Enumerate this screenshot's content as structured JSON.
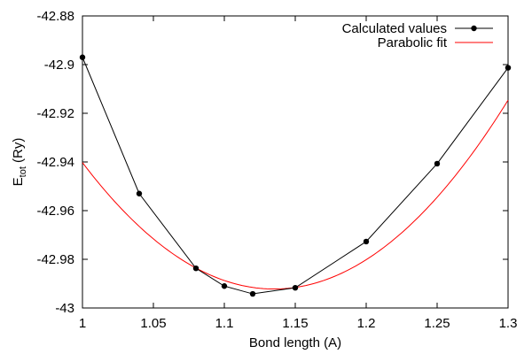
{
  "chart_data": {
    "type": "line",
    "xlabel": "Bond length (A)",
    "ylabel_main": "E",
    "ylabel_sub": "tot",
    "ylabel_suffix": " (Ry)",
    "xlim": [
      1.0,
      1.3
    ],
    "ylim": [
      -43.0,
      -42.88
    ],
    "xticks": [
      1.0,
      1.05,
      1.1,
      1.15,
      1.2,
      1.25,
      1.3
    ],
    "xtick_labels": [
      "1",
      "1.05",
      "1.1",
      "1.15",
      "1.2",
      "1.25",
      "1.3"
    ],
    "yticks": [
      -42.88,
      -42.9,
      -42.92,
      -42.94,
      -42.96,
      -42.98,
      -43.0
    ],
    "ytick_labels": [
      "-42.88",
      "-42.9",
      "-42.92",
      "-42.94",
      "-42.96",
      "-42.98",
      "-43"
    ],
    "grid": false,
    "legend_position": "top-right",
    "series": [
      {
        "name": "Calculated values",
        "color": "#000000",
        "marker": "circle",
        "x": [
          1.0,
          1.04,
          1.08,
          1.1,
          1.12,
          1.15,
          1.2,
          1.25,
          1.3
        ],
        "y": [
          -42.897,
          -42.953,
          -42.9837,
          -42.991,
          -42.9942,
          -42.9917,
          -42.9727,
          -42.9407,
          -42.9013
        ]
      },
      {
        "name": "Parabolic fit",
        "color": "#ff0000",
        "marker": "none",
        "fit": {
          "x0": 1.135,
          "y0": -42.9922,
          "a": 2.85
        },
        "x_range": [
          1.0,
          1.3
        ]
      }
    ]
  }
}
